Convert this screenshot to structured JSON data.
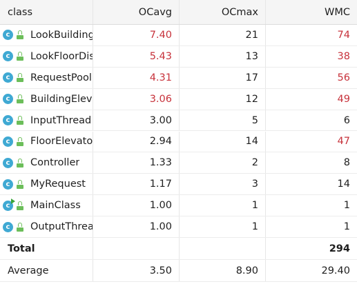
{
  "columns": {
    "class": "class",
    "ocavg": "OCavg",
    "ocmax": "OCmax",
    "wmc": "WMC"
  },
  "rows": [
    {
      "name": "LookBuildingElevator",
      "ocavg": "7.40",
      "ocmax": "21",
      "wmc": "74",
      "ocavg_warn": true,
      "ocmax_warn": false,
      "wmc_warn": true,
      "icon": "class-icon"
    },
    {
      "name": "LookFloorDispatcher",
      "ocavg": "5.43",
      "ocmax": "13",
      "wmc": "38",
      "ocavg_warn": true,
      "ocmax_warn": false,
      "wmc_warn": true,
      "icon": "class-icon"
    },
    {
      "name": "RequestPool",
      "ocavg": "4.31",
      "ocmax": "17",
      "wmc": "56",
      "ocavg_warn": true,
      "ocmax_warn": false,
      "wmc_warn": true,
      "icon": "class-icon"
    },
    {
      "name": "BuildingElevator",
      "ocavg": "3.06",
      "ocmax": "12",
      "wmc": "49",
      "ocavg_warn": true,
      "ocmax_warn": false,
      "wmc_warn": true,
      "icon": "class-icon"
    },
    {
      "name": "InputThread",
      "ocavg": "3.00",
      "ocmax": "5",
      "wmc": "6",
      "ocavg_warn": false,
      "ocmax_warn": false,
      "wmc_warn": false,
      "icon": "class-icon"
    },
    {
      "name": "FloorElevator",
      "ocavg": "2.94",
      "ocmax": "14",
      "wmc": "47",
      "ocavg_warn": false,
      "ocmax_warn": false,
      "wmc_warn": true,
      "icon": "class-icon"
    },
    {
      "name": "Controller",
      "ocavg": "1.33",
      "ocmax": "2",
      "wmc": "8",
      "ocavg_warn": false,
      "ocmax_warn": false,
      "wmc_warn": false,
      "icon": "class-icon"
    },
    {
      "name": "MyRequest",
      "ocavg": "1.17",
      "ocmax": "3",
      "wmc": "14",
      "ocavg_warn": false,
      "ocmax_warn": false,
      "wmc_warn": false,
      "icon": "class-icon"
    },
    {
      "name": "MainClass",
      "ocavg": "1.00",
      "ocmax": "1",
      "wmc": "1",
      "ocavg_warn": false,
      "ocmax_warn": false,
      "wmc_warn": false,
      "icon": "runnable-class-icon"
    },
    {
      "name": "OutputThread",
      "ocavg": "1.00",
      "ocmax": "1",
      "wmc": "1",
      "ocavg_warn": false,
      "ocmax_warn": false,
      "wmc_warn": false,
      "icon": "class-icon"
    }
  ],
  "total": {
    "label": "Total",
    "ocavg": "",
    "ocmax": "",
    "wmc": "294"
  },
  "average": {
    "label": "Average",
    "ocavg": "3.50",
    "ocmax": "8.90",
    "wmc": "29.40"
  },
  "colors": {
    "warning": "#c7323b",
    "class_icon": "#3fa9d3",
    "access_icon": "#6cbe5a",
    "run_mark": "#3aa53a"
  }
}
